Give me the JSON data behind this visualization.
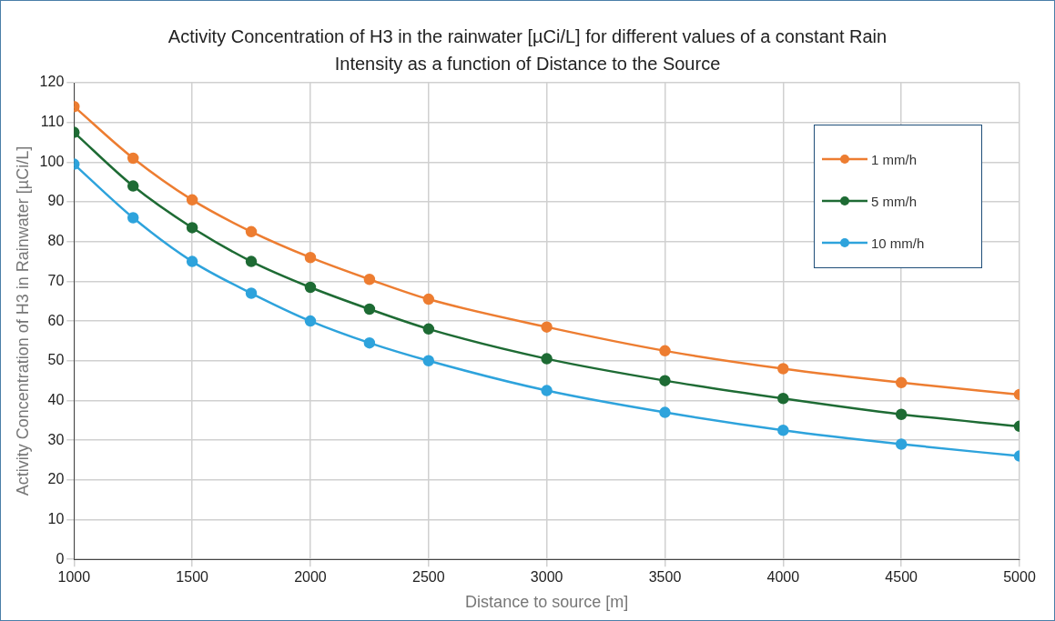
{
  "chart_data": {
    "type": "line",
    "title": "Activity Concentration of H3 in the rainwater [µCi/L] for different values of a constant Rain Intensity as a function of Distance to the Source",
    "xlabel": "Distance to source [m]",
    "ylabel": "Activity Concentration of H3 in Rainwater [µCi/L]",
    "x": [
      1000,
      1250,
      1500,
      1750,
      2000,
      2250,
      2500,
      3000,
      3500,
      4000,
      4500,
      5000
    ],
    "series": [
      {
        "name": "1 mm/h",
        "color": "#ed7d31",
        "values": [
          114,
          101,
          90.5,
          82.5,
          76,
          70.5,
          65.5,
          58.5,
          52.5,
          48,
          44.5,
          41.5
        ]
      },
      {
        "name": "5 mm/h",
        "color": "#1e6b34",
        "values": [
          107.5,
          94,
          83.5,
          75,
          68.5,
          63,
          58,
          50.5,
          45,
          40.5,
          36.5,
          33.5
        ]
      },
      {
        "name": "10 mm/h",
        "color": "#2ea3dc",
        "values": [
          99.5,
          86,
          75,
          67,
          60,
          54.5,
          50,
          42.5,
          37,
          32.5,
          29,
          26
        ]
      }
    ],
    "xlim": [
      1000,
      5000
    ],
    "xticks": [
      1000,
      1500,
      2000,
      2500,
      3000,
      3500,
      4000,
      4500,
      5000
    ],
    "ylim": [
      0,
      120
    ],
    "yticks": [
      0,
      10,
      20,
      30,
      40,
      50,
      60,
      70,
      80,
      90,
      100,
      110,
      120
    ],
    "grid": true,
    "legend": "top right",
    "marker": "circle",
    "line_style": "solid"
  }
}
